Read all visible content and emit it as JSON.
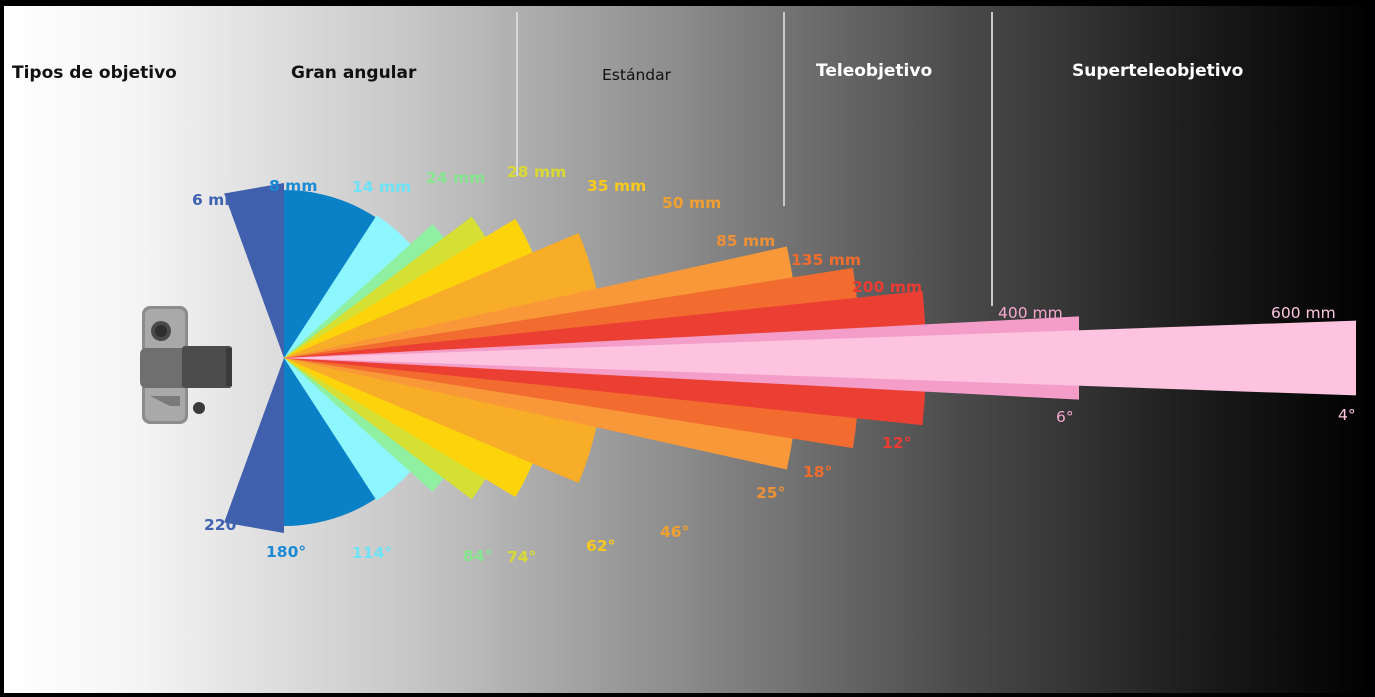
{
  "categories": {
    "types": "Tipos de objetivo",
    "wide": "Gran angular",
    "standard": "Estándar",
    "tele": "Teleobjetivo",
    "supertele": "Superteleobjetivo"
  },
  "icon": "camera-icon",
  "lenses": [
    {
      "focal": "6 mm",
      "angle": "220°",
      "color": "#4060ad"
    },
    {
      "focal": "8 mm",
      "angle": "180°",
      "color": "#0a80c6"
    },
    {
      "focal": "14 mm",
      "angle": "114°",
      "color": "#8ef6ff"
    },
    {
      "focal": "24 mm",
      "angle": "84°",
      "color": "#8ff0a2"
    },
    {
      "focal": "28 mm",
      "angle": "74°",
      "color": "#d6e034"
    },
    {
      "focal": "35 mm",
      "angle": "62°",
      "color": "#fdd40b"
    },
    {
      "focal": "50 mm",
      "angle": "46°",
      "color": "#f7ad28"
    },
    {
      "focal": "85 mm",
      "angle": "25°",
      "color": "#f89838"
    },
    {
      "focal": "135 mm",
      "angle": "18°",
      "color": "#f26b2f"
    },
    {
      "focal": "200 mm",
      "angle": "12°",
      "color": "#ec3f34"
    },
    {
      "focal": "400 mm",
      "angle": "6°",
      "color": "#f49dc8"
    },
    {
      "focal": "600 mm",
      "angle": "4°",
      "color": "#fdc3df"
    }
  ],
  "label_colors": {
    "6 mm": "#3f63b0",
    "8 mm": "#1a8ad4",
    "14 mm": "#6ee3f5",
    "24 mm": "#86e58f",
    "28 mm": "#d9d935",
    "35 mm": "#f7c81e",
    "50 mm": "#f0a030",
    "85 mm": "#ee9136",
    "135 mm": "#f26d2c",
    "200 mm": "#ee3b32",
    "400 mm": "#f7a9d0",
    "600 mm": "#fcc6e0"
  }
}
